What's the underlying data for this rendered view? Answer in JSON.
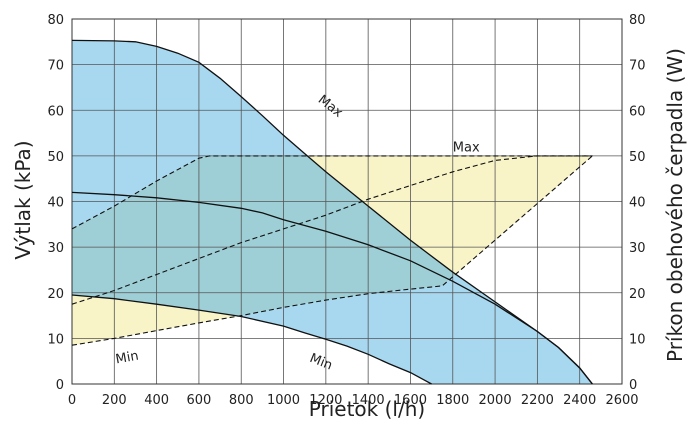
{
  "chart_data": {
    "type": "area",
    "xlabel": "Prietok  (l/h)",
    "ylabel": "Výtlak  (kPa)",
    "y2label": "Príkon obehového čerpadla  (W)",
    "xlim": [
      0,
      2600
    ],
    "ylim": [
      0,
      80
    ],
    "y2lim": [
      0,
      80
    ],
    "x_ticks": [
      0,
      200,
      400,
      600,
      800,
      1000,
      1200,
      1400,
      1600,
      1800,
      2000,
      2200,
      2400,
      2600
    ],
    "y_ticks": [
      0,
      10,
      20,
      30,
      40,
      50,
      60,
      70,
      80
    ],
    "y2_ticks": [
      0,
      10,
      20,
      30,
      40,
      50,
      60,
      70,
      80
    ],
    "grid": true,
    "colors": {
      "pressure_fill": "#a8d8f0",
      "power_fill": "#f8f4c8",
      "overlap_fill": "#9ecfd6",
      "line": "#111111",
      "grid": "#555555"
    },
    "pressure_curves": {
      "max": [
        [
          0,
          75.3
        ],
        [
          200,
          75.2
        ],
        [
          300,
          75
        ],
        [
          400,
          74
        ],
        [
          500,
          72.5
        ],
        [
          600,
          70.5
        ],
        [
          700,
          67
        ],
        [
          800,
          63
        ],
        [
          900,
          58.8
        ],
        [
          1000,
          54.5
        ],
        [
          1100,
          50.5
        ],
        [
          1200,
          46.5
        ],
        [
          1400,
          39
        ],
        [
          1600,
          31.5
        ],
        [
          1800,
          24.5
        ],
        [
          2000,
          18
        ],
        [
          2200,
          11.5
        ],
        [
          2300,
          8
        ],
        [
          2400,
          3.5
        ],
        [
          2460,
          0
        ]
      ],
      "mid": [
        [
          0,
          42
        ],
        [
          200,
          41.5
        ],
        [
          400,
          40.8
        ],
        [
          600,
          39.8
        ],
        [
          800,
          38.5
        ],
        [
          900,
          37.5
        ],
        [
          1000,
          36
        ],
        [
          1200,
          33.5
        ],
        [
          1400,
          30.5
        ],
        [
          1600,
          27
        ],
        [
          1800,
          22.5
        ],
        [
          2000,
          17.5
        ],
        [
          2200,
          11.5
        ],
        [
          2300,
          8
        ],
        [
          2400,
          3.5
        ],
        [
          2460,
          0
        ]
      ],
      "min": [
        [
          0,
          19.5
        ],
        [
          200,
          18.7
        ],
        [
          400,
          17.5
        ],
        [
          600,
          16.2
        ],
        [
          800,
          14.8
        ],
        [
          1000,
          12.7
        ],
        [
          1100,
          11.2
        ],
        [
          1200,
          9.8
        ],
        [
          1300,
          8.3
        ],
        [
          1400,
          6.5
        ],
        [
          1500,
          4.4
        ],
        [
          1600,
          2.5
        ],
        [
          1700,
          0
        ]
      ]
    },
    "power_curves": {
      "max": [
        [
          0,
          34
        ],
        [
          200,
          39
        ],
        [
          400,
          44.5
        ],
        [
          600,
          49.5
        ],
        [
          650,
          50
        ],
        [
          2460,
          50
        ]
      ],
      "mid": [
        [
          0,
          17.5
        ],
        [
          200,
          20.5
        ],
        [
          400,
          24
        ],
        [
          600,
          27.5
        ],
        [
          800,
          31
        ],
        [
          1000,
          34
        ],
        [
          1200,
          37
        ],
        [
          1400,
          40.5
        ],
        [
          1600,
          43.5
        ],
        [
          1800,
          46.5
        ],
        [
          2000,
          49
        ],
        [
          2200,
          50
        ],
        [
          2460,
          50
        ]
      ],
      "min": [
        [
          0,
          8.5
        ],
        [
          200,
          10
        ],
        [
          400,
          11.7
        ],
        [
          600,
          13.4
        ],
        [
          800,
          15
        ],
        [
          1000,
          16.8
        ],
        [
          1200,
          18.4
        ],
        [
          1400,
          19.8
        ],
        [
          1600,
          20.8
        ],
        [
          1750,
          21.5
        ],
        [
          2460,
          50
        ]
      ]
    },
    "labels": [
      {
        "text": "Max",
        "x": 1160,
        "y": 62,
        "rotate": 38
      },
      {
        "text": "Max",
        "x": 1800,
        "y": 51,
        "rotate": 0
      },
      {
        "text": "Min",
        "x": 210,
        "y": 4.5,
        "rotate": -10
      },
      {
        "text": "Min",
        "x": 1120,
        "y": 5,
        "rotate": 22
      }
    ]
  }
}
